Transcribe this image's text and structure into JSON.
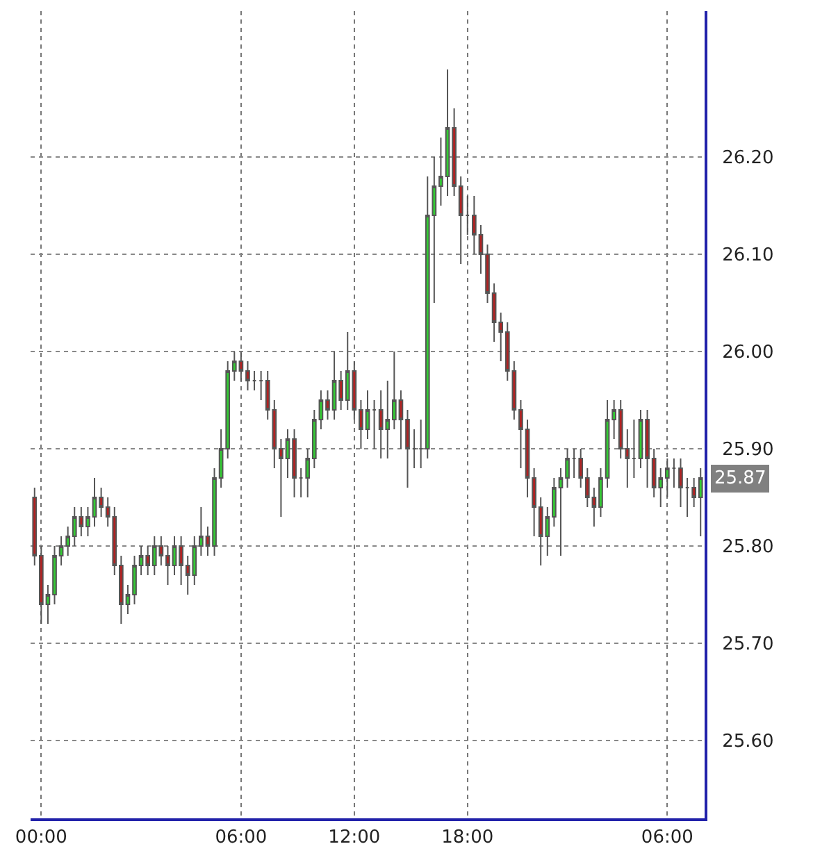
{
  "chart_data": {
    "type": "candlestick",
    "categories": [
      null,
      "00:00",
      null,
      null,
      null,
      null,
      null,
      null,
      null,
      null,
      null,
      null,
      null,
      null,
      null,
      null,
      null,
      null,
      null,
      null,
      null,
      null,
      null,
      null,
      null,
      null,
      null,
      null,
      null,
      null,
      null,
      "06:00",
      null,
      null,
      null,
      null,
      null,
      null,
      null,
      null,
      null,
      null,
      null,
      null,
      null,
      null,
      null,
      null,
      "12:00",
      null,
      null,
      null,
      null,
      null,
      null,
      null,
      null,
      null,
      null,
      null,
      null,
      null,
      null,
      null,
      null,
      "18:00",
      null,
      null,
      null,
      null,
      null,
      null,
      null,
      null,
      null,
      null,
      null,
      null,
      null,
      null,
      null,
      null,
      null,
      null,
      null,
      null,
      null,
      null,
      null,
      null,
      null,
      null,
      null,
      null,
      null,
      "06:00",
      null,
      null,
      null,
      null,
      null
    ],
    "ohlc": [
      [
        25.85,
        25.86,
        25.78,
        25.79
      ],
      [
        25.79,
        25.8,
        25.72,
        25.74
      ],
      [
        25.74,
        25.76,
        25.72,
        25.75
      ],
      [
        25.75,
        25.8,
        25.74,
        25.79
      ],
      [
        25.79,
        25.81,
        25.78,
        25.8
      ],
      [
        25.8,
        25.82,
        25.79,
        25.81
      ],
      [
        25.81,
        25.84,
        25.8,
        25.83
      ],
      [
        25.83,
        25.84,
        25.81,
        25.82
      ],
      [
        25.82,
        25.84,
        25.81,
        25.83
      ],
      [
        25.83,
        25.87,
        25.82,
        25.85
      ],
      [
        25.85,
        25.86,
        25.83,
        25.84
      ],
      [
        25.84,
        25.85,
        25.82,
        25.83
      ],
      [
        25.83,
        25.84,
        25.77,
        25.78
      ],
      [
        25.78,
        25.79,
        25.72,
        25.74
      ],
      [
        25.74,
        25.76,
        25.73,
        25.75
      ],
      [
        25.75,
        25.79,
        25.74,
        25.78
      ],
      [
        25.78,
        25.8,
        25.77,
        25.79
      ],
      [
        25.79,
        25.8,
        25.77,
        25.78
      ],
      [
        25.78,
        25.81,
        25.77,
        25.8
      ],
      [
        25.8,
        25.81,
        25.78,
        25.79
      ],
      [
        25.79,
        25.8,
        25.76,
        25.78
      ],
      [
        25.78,
        25.81,
        25.77,
        25.8
      ],
      [
        25.8,
        25.81,
        25.76,
        25.78
      ],
      [
        25.78,
        25.79,
        25.75,
        25.77
      ],
      [
        25.77,
        25.81,
        25.76,
        25.8
      ],
      [
        25.8,
        25.84,
        25.79,
        25.81
      ],
      [
        25.81,
        25.82,
        25.79,
        25.8
      ],
      [
        25.8,
        25.88,
        25.79,
        25.87
      ],
      [
        25.87,
        25.92,
        25.86,
        25.9
      ],
      [
        25.9,
        25.99,
        25.89,
        25.98
      ],
      [
        25.98,
        26.0,
        25.97,
        25.99
      ],
      [
        25.99,
        26.0,
        25.97,
        25.98
      ],
      [
        25.98,
        25.99,
        25.96,
        25.97
      ],
      [
        25.97,
        25.98,
        25.96,
        25.97
      ],
      [
        25.97,
        25.98,
        25.95,
        25.97
      ],
      [
        25.97,
        25.98,
        25.93,
        25.94
      ],
      [
        25.94,
        25.95,
        25.88,
        25.9
      ],
      [
        25.9,
        25.91,
        25.83,
        25.89
      ],
      [
        25.89,
        25.92,
        25.87,
        25.91
      ],
      [
        25.91,
        25.92,
        25.85,
        25.87
      ],
      [
        25.87,
        25.88,
        25.85,
        25.87
      ],
      [
        25.87,
        25.9,
        25.85,
        25.89
      ],
      [
        25.89,
        25.94,
        25.88,
        25.93
      ],
      [
        25.93,
        25.96,
        25.92,
        25.95
      ],
      [
        25.95,
        25.96,
        25.93,
        25.94
      ],
      [
        25.94,
        26.0,
        25.93,
        25.97
      ],
      [
        25.97,
        25.98,
        25.94,
        25.95
      ],
      [
        25.95,
        26.02,
        25.94,
        25.98
      ],
      [
        25.98,
        25.99,
        25.93,
        25.94
      ],
      [
        25.94,
        25.95,
        25.9,
        25.92
      ],
      [
        25.92,
        25.96,
        25.91,
        25.94
      ],
      [
        25.94,
        25.95,
        25.9,
        25.94
      ],
      [
        25.94,
        25.96,
        25.89,
        25.92
      ],
      [
        25.92,
        25.97,
        25.89,
        25.93
      ],
      [
        25.93,
        26.0,
        25.92,
        25.95
      ],
      [
        25.95,
        25.96,
        25.9,
        25.93
      ],
      [
        25.93,
        25.94,
        25.86,
        25.9
      ],
      [
        25.9,
        25.92,
        25.88,
        25.9
      ],
      [
        25.9,
        25.93,
        25.88,
        25.9
      ],
      [
        25.9,
        26.18,
        25.89,
        26.14
      ],
      [
        26.14,
        26.2,
        26.05,
        26.17
      ],
      [
        26.17,
        26.22,
        26.15,
        26.18
      ],
      [
        26.18,
        26.29,
        26.16,
        26.23
      ],
      [
        26.23,
        26.25,
        26.16,
        26.17
      ],
      [
        26.17,
        26.18,
        26.09,
        26.14
      ],
      [
        26.14,
        26.16,
        26.12,
        26.14
      ],
      [
        26.14,
        26.16,
        26.1,
        26.12
      ],
      [
        26.12,
        26.13,
        26.08,
        26.1
      ],
      [
        26.1,
        26.11,
        26.05,
        26.06
      ],
      [
        26.06,
        26.07,
        26.01,
        26.03
      ],
      [
        26.03,
        26.04,
        25.99,
        26.02
      ],
      [
        26.02,
        26.03,
        25.97,
        25.98
      ],
      [
        25.98,
        25.99,
        25.93,
        25.94
      ],
      [
        25.94,
        25.95,
        25.88,
        25.92
      ],
      [
        25.92,
        25.93,
        25.85,
        25.87
      ],
      [
        25.87,
        25.88,
        25.81,
        25.84
      ],
      [
        25.84,
        25.85,
        25.78,
        25.81
      ],
      [
        25.81,
        25.84,
        25.79,
        25.83
      ],
      [
        25.83,
        25.87,
        25.82,
        25.86
      ],
      [
        25.86,
        25.88,
        25.79,
        25.87
      ],
      [
        25.87,
        25.9,
        25.86,
        25.89
      ],
      [
        25.89,
        25.9,
        25.87,
        25.89
      ],
      [
        25.89,
        25.9,
        25.86,
        25.87
      ],
      [
        25.87,
        25.88,
        25.84,
        25.85
      ],
      [
        25.85,
        25.86,
        25.82,
        25.84
      ],
      [
        25.84,
        25.88,
        25.83,
        25.87
      ],
      [
        25.87,
        25.95,
        25.86,
        25.93
      ],
      [
        25.93,
        25.95,
        25.91,
        25.94
      ],
      [
        25.94,
        25.95,
        25.89,
        25.9
      ],
      [
        25.9,
        25.92,
        25.86,
        25.89
      ],
      [
        25.89,
        25.93,
        25.87,
        25.89
      ],
      [
        25.89,
        25.94,
        25.88,
        25.93
      ],
      [
        25.93,
        25.94,
        25.86,
        25.89
      ],
      [
        25.89,
        25.9,
        25.85,
        25.86
      ],
      [
        25.86,
        25.88,
        25.84,
        25.87
      ],
      [
        25.87,
        25.89,
        25.85,
        25.88
      ],
      [
        25.88,
        25.89,
        25.86,
        25.88
      ],
      [
        25.88,
        25.89,
        25.84,
        25.86
      ],
      [
        25.86,
        25.87,
        25.83,
        25.86
      ],
      [
        25.86,
        25.87,
        25.84,
        25.85
      ],
      [
        25.85,
        25.88,
        25.81,
        25.87
      ]
    ],
    "colors": [
      "#b22222",
      "#b22222",
      "#33cc33",
      "#33cc33",
      "#33cc33",
      "#33cc33",
      "#33cc33",
      "#b22222",
      "#33cc33",
      "#33cc33",
      "#b22222",
      "#b22222",
      "#b22222",
      "#b22222",
      "#33cc33",
      "#33cc33",
      "#33cc33",
      "#b22222",
      "#33cc33",
      "#b22222",
      "#b22222",
      "#33cc33",
      "#b22222",
      "#b22222",
      "#33cc33",
      "#33cc33",
      "#b22222",
      "#33cc33",
      "#33cc33",
      "#33cc33",
      "#33cc33",
      "#b22222",
      "#b22222",
      "#555555",
      "#555555",
      "#b22222",
      "#b22222",
      "#b22222",
      "#33cc33",
      "#b22222",
      "#555555",
      "#33cc33",
      "#33cc33",
      "#33cc33",
      "#b22222",
      "#33cc33",
      "#b22222",
      "#33cc33",
      "#b22222",
      "#b22222",
      "#33cc33",
      "#555555",
      "#b22222",
      "#33cc33",
      "#33cc33",
      "#b22222",
      "#b22222",
      "#555555",
      "#555555",
      "#33cc33",
      "#33cc33",
      "#33cc33",
      "#33cc33",
      "#b22222",
      "#b22222",
      "#555555",
      "#b22222",
      "#b22222",
      "#b22222",
      "#b22222",
      "#b22222",
      "#b22222",
      "#b22222",
      "#b22222",
      "#b22222",
      "#b22222",
      "#b22222",
      "#33cc33",
      "#33cc33",
      "#33cc33",
      "#33cc33",
      "#555555",
      "#b22222",
      "#b22222",
      "#b22222",
      "#33cc33",
      "#33cc33",
      "#33cc33",
      "#b22222",
      "#b22222",
      "#555555",
      "#33cc33",
      "#b22222",
      "#b22222",
      "#33cc33",
      "#33cc33",
      "#555555",
      "#b22222",
      "#555555",
      "#b22222",
      "#33cc33"
    ],
    "ylim": [
      25.52,
      26.35
    ],
    "yticks": [
      {
        "value": 25.6,
        "label": "25.60"
      },
      {
        "value": 25.7,
        "label": "25.70"
      },
      {
        "value": 25.8,
        "label": "25.80"
      },
      {
        "value": 25.9,
        "label": "25.90"
      },
      {
        "value": 26.0,
        "label": "26.00"
      },
      {
        "value": 26.1,
        "label": "26.10"
      },
      {
        "value": 26.2,
        "label": "26.20"
      }
    ],
    "annotations": [
      "25.87"
    ],
    "grid": true
  }
}
